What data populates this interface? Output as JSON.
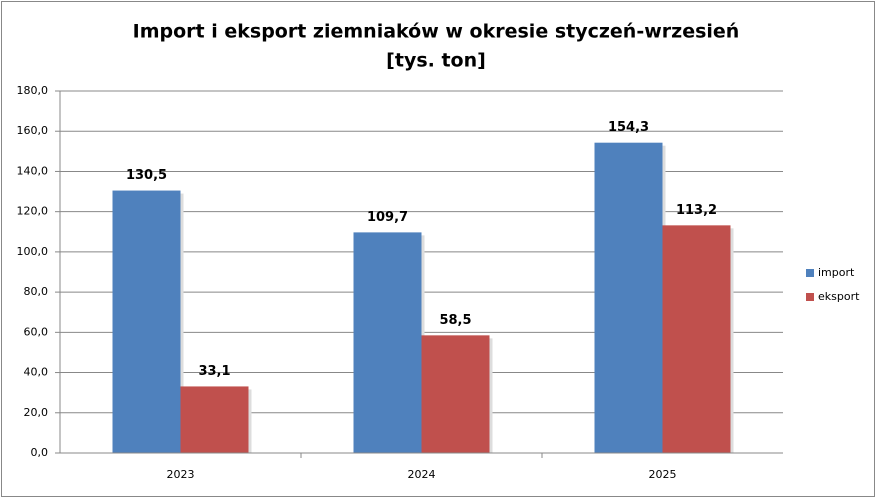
{
  "chart_data": {
    "type": "bar",
    "title": "Import i eksport ziemniaków w okresie styczeń-wrzesień",
    "subtitle": "[tys. ton]",
    "categories": [
      "2023",
      "2024",
      "2025"
    ],
    "series": [
      {
        "name": "import",
        "color": "#4f81bd",
        "values": [
          130.5,
          109.7,
          154.3
        ],
        "value_labels": [
          "130,5",
          "109,7",
          "154,3"
        ]
      },
      {
        "name": "eksport",
        "color": "#c0504d",
        "values": [
          33.1,
          58.5,
          113.2
        ],
        "value_labels": [
          "33,1",
          "58,5",
          "113,2"
        ]
      }
    ],
    "ylim": [
      0,
      180
    ],
    "yticks": [
      {
        "value": 0,
        "label": "0,0"
      },
      {
        "value": 20,
        "label": "20,0"
      },
      {
        "value": 40,
        "label": "40,0"
      },
      {
        "value": 60,
        "label": "60,0"
      },
      {
        "value": 80,
        "label": "80,0"
      },
      {
        "value": 100,
        "label": "100,0"
      },
      {
        "value": 120,
        "label": "120,0"
      },
      {
        "value": 140,
        "label": "140,0"
      },
      {
        "value": 160,
        "label": "160,0"
      },
      {
        "value": 180,
        "label": "180,0"
      }
    ],
    "grid": true,
    "legend": "right"
  }
}
